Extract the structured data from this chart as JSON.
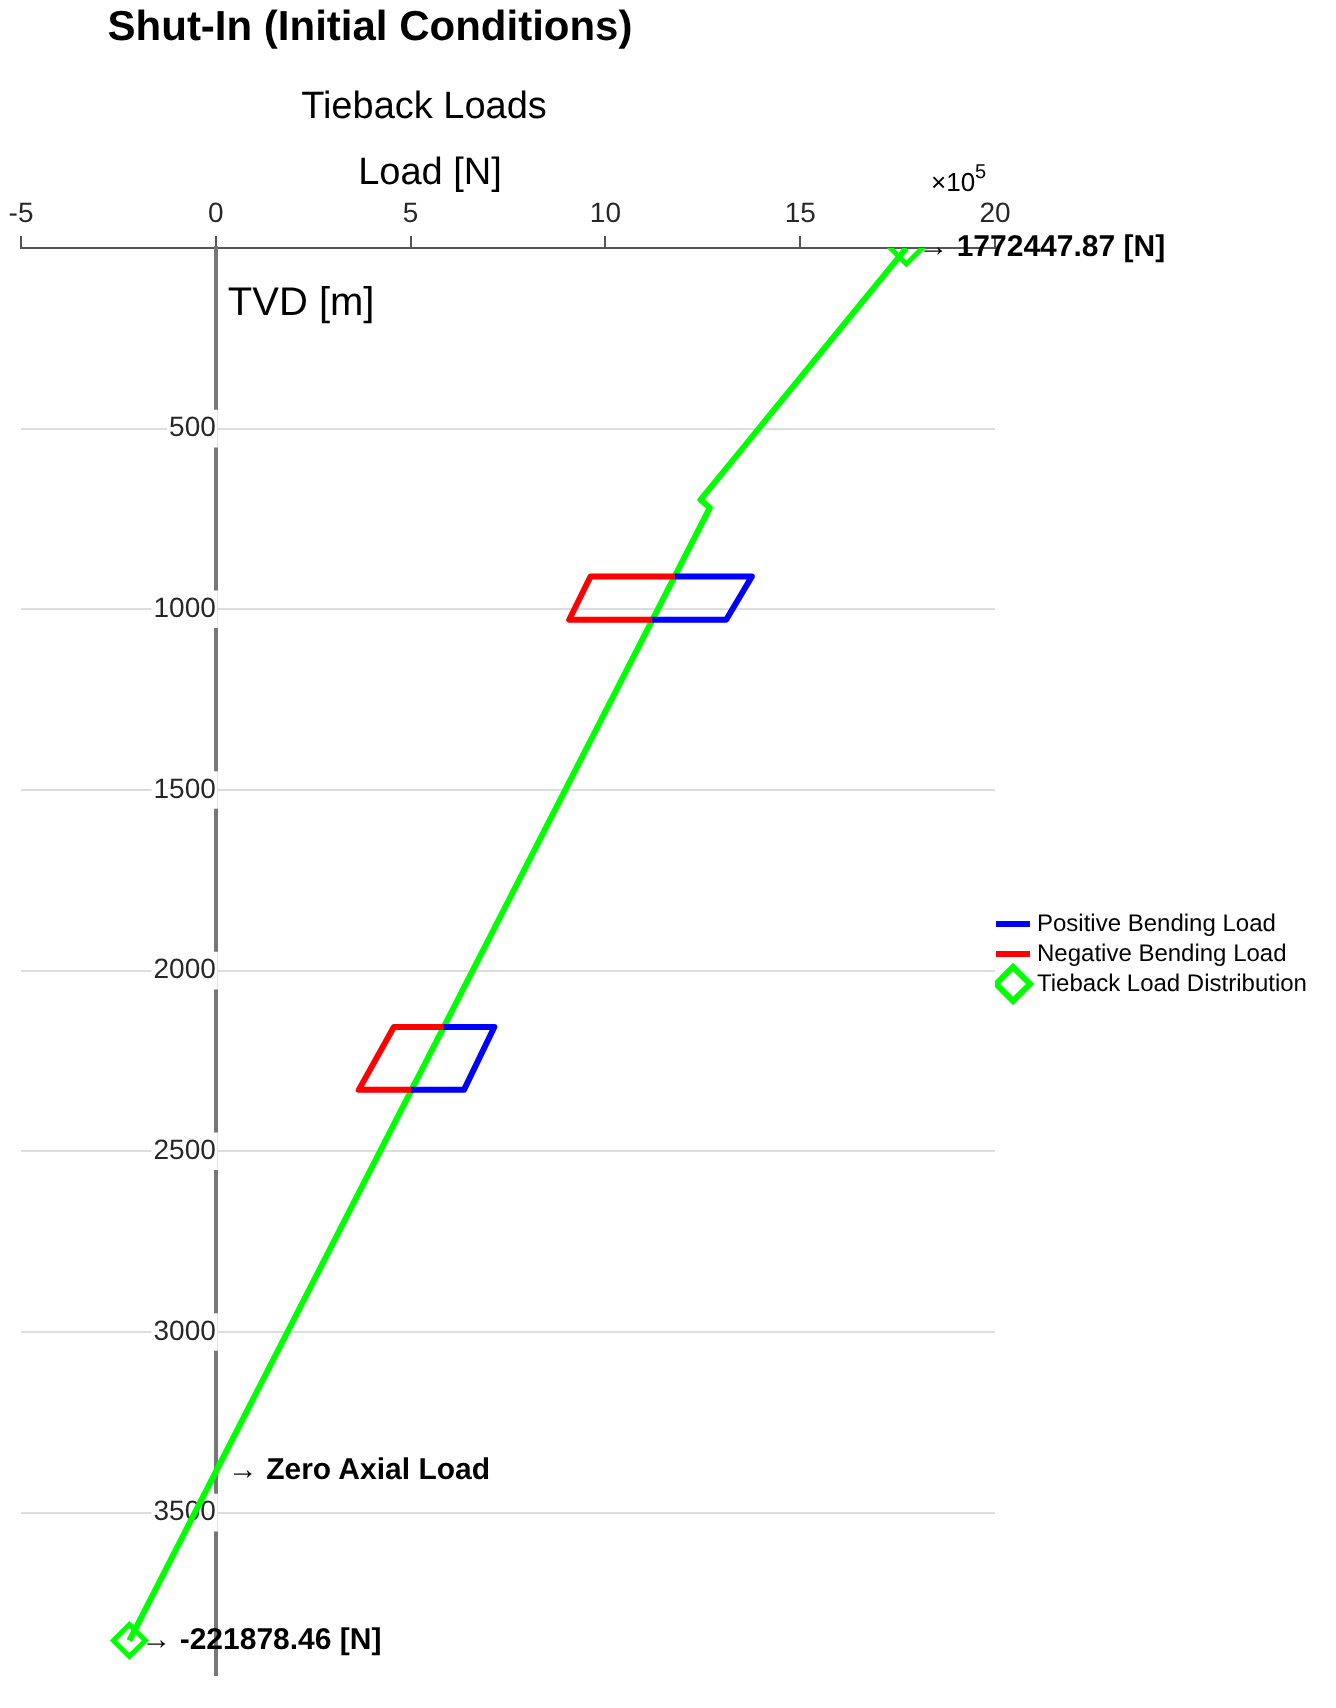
{
  "chart_data": {
    "type": "line",
    "title": "Shut-In (Initial Conditions)",
    "subtitle": "Tieback Loads",
    "xlabel": "Load [N]",
    "ylabel": "TVD [m]",
    "xlim": [
      -5,
      20
    ],
    "xticks": [
      -5,
      0,
      5,
      10,
      15,
      20
    ],
    "ylim": [
      3950,
      0
    ],
    "yticks": [
      500,
      1000,
      1500,
      2000,
      2500,
      3000,
      3500
    ],
    "grid": "y",
    "legend": "right",
    "line_style": "solid",
    "series": [
      {
        "name": "Positive Bending Load",
        "color": "#0000ff",
        "x": [
          11.78,
          13.76,
          13.1,
          11.2,
          null,
          5.84,
          7.15,
          6.37,
          5.01
        ],
        "values": [
          909,
          909,
          1029,
          1029,
          null,
          2156,
          2156,
          2330,
          2330
        ]
      },
      {
        "name": "Negative Bending Load",
        "color": "#ff0000",
        "x": [
          11.78,
          9.62,
          9.07,
          11.2,
          null,
          5.84,
          4.57,
          3.67,
          5.01
        ],
        "values": [
          909,
          909,
          1029,
          1029,
          null,
          2156,
          2156,
          2330,
          2330
        ]
      },
      {
        "name": "Tieback Load Distribution",
        "color": "#00ff00",
        "marker": "diamond",
        "x": [
          17.7244787,
          12.44,
          12.68,
          -2.2187846
        ],
        "values": [
          0,
          697,
          719,
          3854
        ]
      }
    ],
    "annotations": [
      "×10$^{5}$",
      {
        "text": "→ 1772447.87 [N]",
        "x": 17.7244787,
        "y": 0
      },
      {
        "text": "→ Zero Axial Load",
        "x": 0,
        "y": 3383
      },
      {
        "text": "→ -221878.46 [N]",
        "x": -2.2187846,
        "y": 3854
      }
    ]
  }
}
